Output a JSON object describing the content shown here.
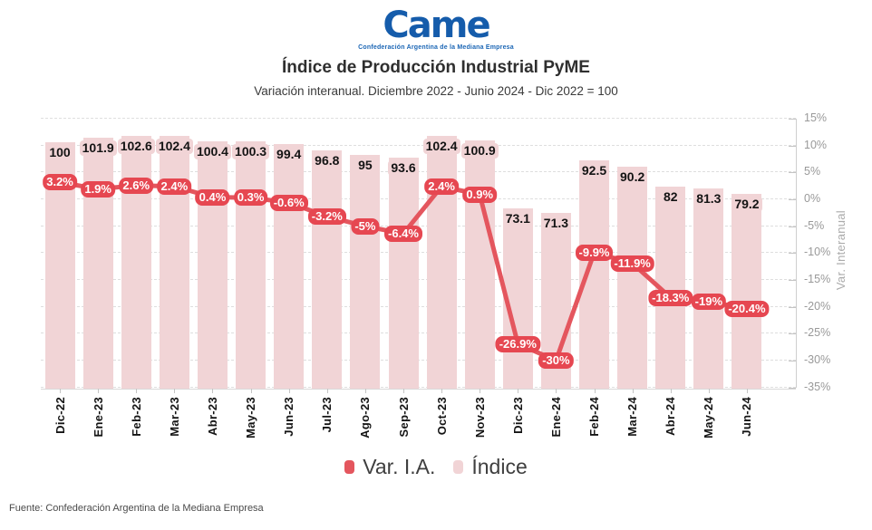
{
  "logo": {
    "text": "Came",
    "subtext": "Confederación Argentina de la Mediana Empresa"
  },
  "header": {
    "title": "Índice de Producción Industrial PyME",
    "subtitle": "Variación interanual. Diciembre 2022 - Junio 2024 - Dic 2022 = 100"
  },
  "legend": {
    "items": [
      {
        "label": "Var. I.A.",
        "color": "#e4565e"
      },
      {
        "label": "Índice",
        "color": "#f1d4d6"
      }
    ]
  },
  "footer": {
    "source": "Fuente: Confederación Argentina de la Mediana Empresa"
  },
  "colors": {
    "bar": "#f1d4d6",
    "line": "#e4565e",
    "line_label_bg": "#e64751",
    "logo_blue": "#155cab"
  },
  "chart_data": {
    "type": "combo_bar_line",
    "title": "Índice de Producción Industrial PyME",
    "subtitle": "Variación interanual. Diciembre 2022 - Junio 2024 - Dic 2022 = 100",
    "categories": [
      "Dic-22",
      "Ene-23",
      "Feb-23",
      "Mar-23",
      "Abr-23",
      "May-23",
      "Jun-23",
      "Jul-23",
      "Ago-23",
      "Sep-23",
      "Oct-23",
      "Nov-23",
      "Dic-23",
      "Ene-24",
      "Feb-24",
      "Mar-24",
      "Abr-24",
      "May-24",
      "Jun-24"
    ],
    "series": [
      {
        "name": "Índice",
        "type": "bar",
        "color": "#f1d4d6",
        "values": [
          100,
          101.9,
          102.6,
          102.4,
          100.4,
          100.3,
          99.4,
          96.8,
          95,
          93.6,
          102.4,
          100.9,
          73.1,
          71.3,
          92.5,
          90.2,
          82,
          81.3,
          79.2
        ],
        "labels": [
          "100",
          "101.9",
          "102.6",
          "102.4",
          "100.4",
          "100.3",
          "99.4",
          "96.8",
          "95",
          "93.6",
          "102.4",
          "100.9",
          "73.1",
          "71.3",
          "92.5",
          "90.2",
          "82",
          "81.3",
          "79.2"
        ]
      },
      {
        "name": "Var. I.A.",
        "type": "line",
        "color": "#e4565e",
        "values": [
          3.2,
          1.9,
          2.6,
          2.4,
          0.4,
          0.3,
          -0.6,
          -3.2,
          -5,
          -6.4,
          2.4,
          0.9,
          -26.9,
          -30,
          -9.9,
          -11.9,
          -18.3,
          -19,
          -20.4
        ],
        "labels": [
          "3.2%",
          "1.9%",
          "2.6%",
          "2.4%",
          "0.4%",
          "0.3%",
          "-0.6%",
          "-3.2%",
          "-5%",
          "-6.4%",
          "2.4%",
          "0.9%",
          "-26.9%",
          "-30%",
          "-9.9%",
          "-11.9%",
          "-18.3%",
          "-19%",
          "-20.4%"
        ]
      }
    ],
    "y_right": {
      "label": "Var. Interanual",
      "ticks": [
        "15%",
        "10%",
        "5%",
        "0%",
        "-5%",
        "-10%",
        "-15%",
        "-20%",
        "-25%",
        "-30%",
        "-35%"
      ],
      "tick_values": [
        15,
        10,
        5,
        0,
        -5,
        -10,
        -15,
        -20,
        -25,
        -30,
        -35
      ],
      "min": -35,
      "max": 15
    },
    "grid": "horizontal-dashed",
    "x_label_rotation": -90,
    "legend_position": "bottom"
  }
}
